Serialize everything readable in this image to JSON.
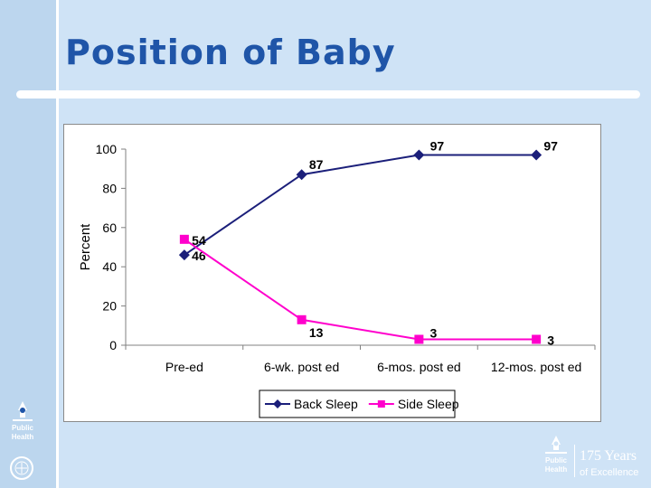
{
  "slide": {
    "title": "Position of Baby"
  },
  "branding": {
    "logo_small_text": "Public Health",
    "footer_logo_text": "Public Health",
    "footer_years": "175 Years",
    "footer_excellence": "of Excellence"
  },
  "colors": {
    "background": "#cfe3f6",
    "title": "#1f55a8",
    "back_sleep": "#1b1f7a",
    "side_sleep": "#ff00cc"
  },
  "chart_data": {
    "type": "line",
    "title": "",
    "xlabel": "",
    "ylabel": "Percent",
    "categories": [
      "Pre-ed",
      "6-wk. post ed",
      "6-mos. post ed",
      "12-mos. post ed"
    ],
    "ylim": [
      0,
      100
    ],
    "yticks": [
      0,
      20,
      40,
      60,
      80,
      100
    ],
    "grid": false,
    "legend_position": "bottom",
    "series": [
      {
        "name": "Back Sleep",
        "values": [
          46,
          87,
          97,
          97
        ],
        "marker": "diamond",
        "color": "#1b1f7a"
      },
      {
        "name": "Side Sleep",
        "values": [
          54,
          13,
          3,
          3
        ],
        "marker": "square",
        "color": "#ff00cc"
      }
    ]
  }
}
